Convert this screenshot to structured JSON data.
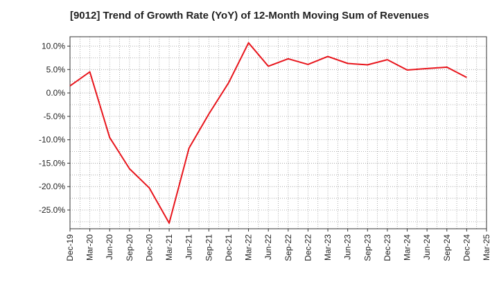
{
  "chart_data": {
    "type": "line",
    "title": "[9012]  Trend of Growth Rate (YoY) of 12-Month Moving Sum of Revenues",
    "xlabel": "",
    "ylabel": "",
    "x": [
      "Dec-19",
      "Mar-20",
      "Jun-20",
      "Sep-20",
      "Dec-20",
      "Mar-21",
      "Jun-21",
      "Sep-21",
      "Dec-21",
      "Mar-22",
      "Jun-22",
      "Sep-22",
      "Dec-22",
      "Mar-23",
      "Jun-23",
      "Sep-23",
      "Dec-23",
      "Mar-24",
      "Jun-24",
      "Sep-24",
      "Dec-24",
      "Mar-25"
    ],
    "series": [
      {
        "name": "",
        "color": "#e8141b",
        "values": [
          1.5,
          4.5,
          -9.5,
          -16.2,
          -20.3,
          -27.8,
          -11.8,
          -4.5,
          2.2,
          10.7,
          5.7,
          7.3,
          6.1,
          7.8,
          6.3,
          6.0,
          7.1,
          4.9,
          5.2,
          5.5,
          3.3,
          null
        ]
      }
    ],
    "yticks": [
      "10.0%",
      "5.0%",
      "0.0%",
      "-5.0%",
      "-10.0%",
      "-15.0%",
      "-20.0%",
      "-25.0%"
    ],
    "ytick_values": [
      10,
      5,
      0,
      -5,
      -10,
      -15,
      -20,
      -25
    ],
    "ylim": [
      -29,
      12
    ],
    "grid": true,
    "legend": "none"
  }
}
